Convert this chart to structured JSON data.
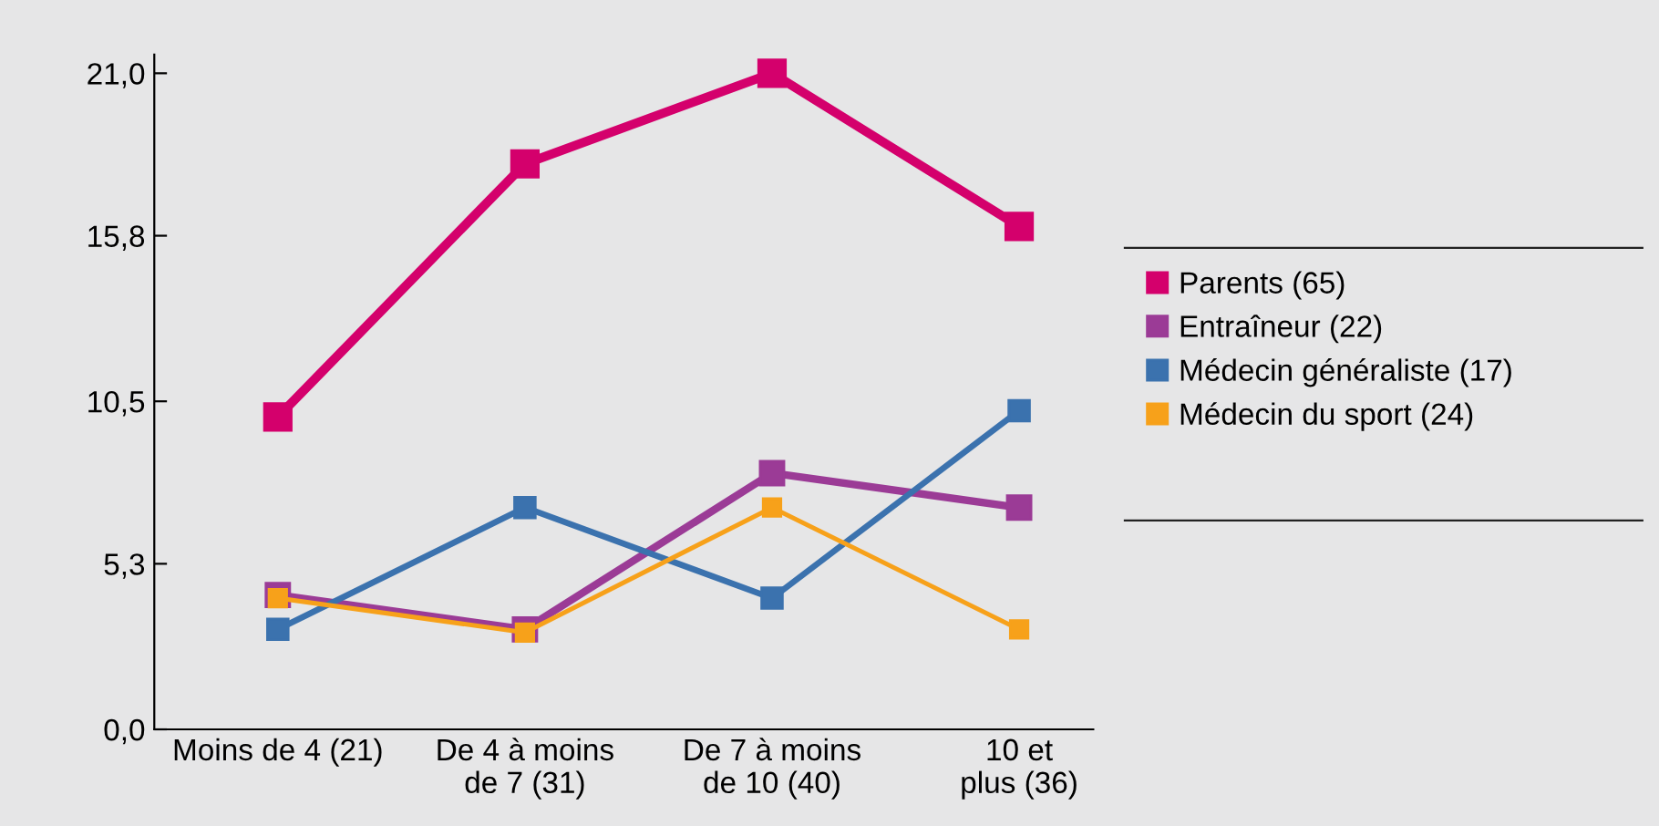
{
  "chart_data": {
    "type": "line",
    "categories": [
      "Moins de 4 (21)",
      "De 4 à moins\nde 7 (31)",
      "De 7 à moins\nde 10 (40)",
      "10 et\nplus (36)"
    ],
    "series": [
      {
        "name": "Parents (65)",
        "color": "#d4006c",
        "values": [
          10.0,
          18.1,
          21.0,
          16.1
        ]
      },
      {
        "name": "Entraîneur (22)",
        "color": "#9b3b96",
        "values": [
          4.3,
          3.2,
          8.2,
          7.1
        ]
      },
      {
        "name": "Médecin généraliste (17)",
        "color": "#3b72ae",
        "values": [
          3.2,
          7.1,
          4.2,
          10.2
        ]
      },
      {
        "name": "Médecin du sport (24)",
        "color": "#f7a11a",
        "values": [
          4.2,
          3.1,
          7.1,
          3.2
        ]
      }
    ],
    "ylim": [
      0,
      21.6
    ],
    "yticks": [
      {
        "value": 0,
        "label": "0,0"
      },
      {
        "value": 5.3,
        "label": "5,3"
      },
      {
        "value": 10.5,
        "label": "10,5"
      },
      {
        "value": 15.8,
        "label": "15,8"
      },
      {
        "value": 21.0,
        "label": "21,0"
      }
    ],
    "marker": "square",
    "line_style": "solid",
    "grid": false,
    "legend": "right"
  }
}
